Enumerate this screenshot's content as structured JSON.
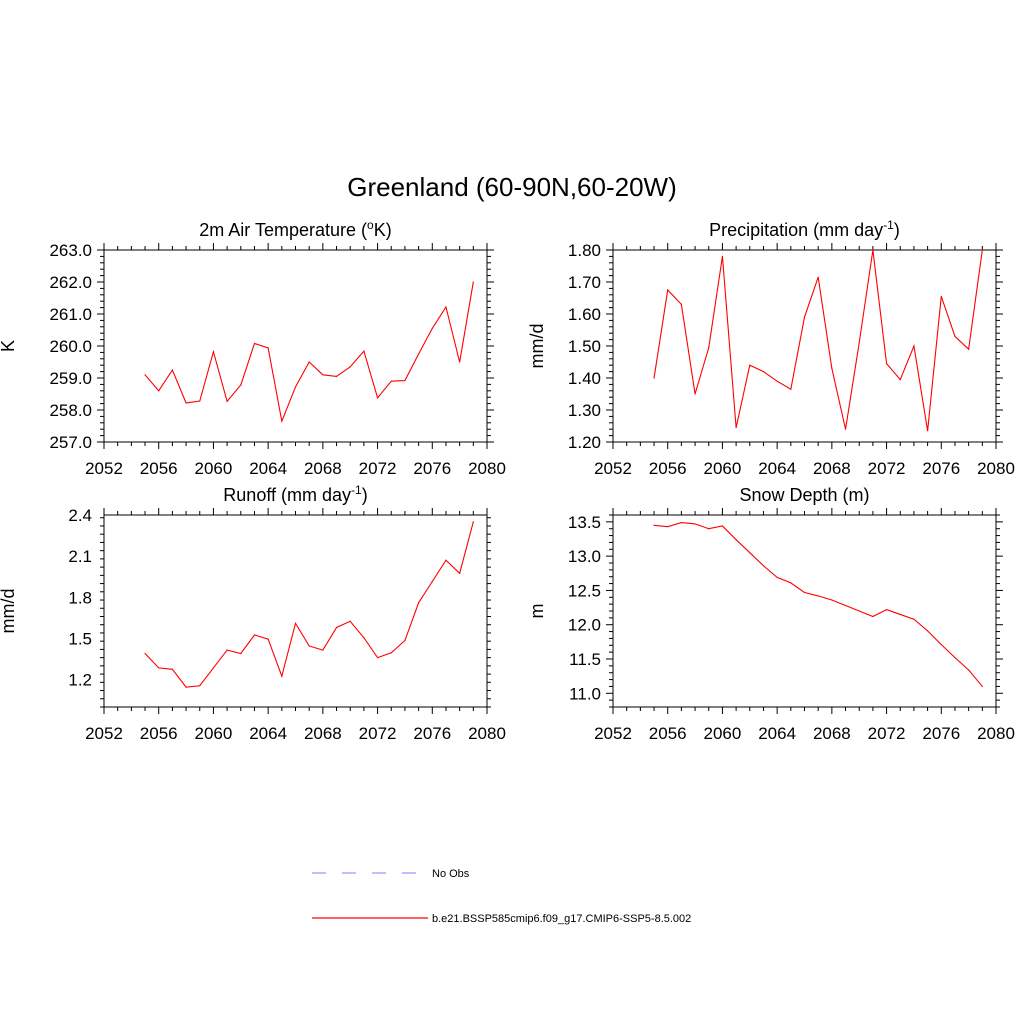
{
  "title": "Greenland (60-90N,60-20W)",
  "colors": {
    "model": "#ff0000",
    "obs": "#9999ff",
    "axis": "#000000"
  },
  "legend": {
    "obs_label": "No Obs",
    "model_label": "b.e21.BSSP585cmip6.f09_g17.CMIP6-SSP5-8.5.002"
  },
  "chart_data": [
    {
      "type": "line",
      "title": "2m Air Temperature (oK)",
      "title_main": "2m Air Temperature (",
      "title_sup": "o",
      "title_tail": "K)",
      "ylabel": "K",
      "xlim": [
        2052,
        2080
      ],
      "ylim": [
        257.0,
        263.0
      ],
      "xticks": [
        2052,
        2056,
        2060,
        2064,
        2068,
        2072,
        2076,
        2080
      ],
      "xticklabels": [
        "2052",
        "2056",
        "2060",
        "2064",
        "2068",
        "2072",
        "2076",
        "2080"
      ],
      "yticks": [
        257.0,
        258.0,
        259.0,
        260.0,
        261.0,
        262.0,
        263.0
      ],
      "yticklabels": [
        "257.0",
        "258.0",
        "259.0",
        "260.0",
        "261.0",
        "262.0",
        "263.0"
      ],
      "x": [
        2055,
        2056,
        2057,
        2058,
        2059,
        2060,
        2061,
        2062,
        2063,
        2064,
        2065,
        2066,
        2067,
        2068,
        2069,
        2070,
        2071,
        2072,
        2073,
        2074,
        2075,
        2076,
        2077,
        2078,
        2079
      ],
      "series": [
        {
          "name": "b.e21.BSSP585cmip6.f09_g17.CMIP6-SSP5-8.5.002",
          "values": [
            259.1,
            258.6,
            259.25,
            258.22,
            258.28,
            259.82,
            258.27,
            258.78,
            260.08,
            259.94,
            257.65,
            258.72,
            259.5,
            259.1,
            259.05,
            259.35,
            259.84,
            258.38,
            258.9,
            258.92,
            259.75,
            260.55,
            261.22,
            259.5,
            262.0
          ]
        }
      ]
    },
    {
      "type": "line",
      "title": "Precipitation (mm day-1)",
      "title_main": "Precipitation (mm day",
      "title_sup": "-1",
      "title_tail": ")",
      "ylabel": "mm/d",
      "xlim": [
        2052,
        2080
      ],
      "ylim": [
        1.2,
        1.8
      ],
      "xticks": [
        2052,
        2056,
        2060,
        2064,
        2068,
        2072,
        2076,
        2080
      ],
      "xticklabels": [
        "2052",
        "2056",
        "2060",
        "2064",
        "2068",
        "2072",
        "2076",
        "2080"
      ],
      "yticks": [
        1.2,
        1.3,
        1.4,
        1.5,
        1.6,
        1.7,
        1.8
      ],
      "yticklabels": [
        "1.20",
        "1.30",
        "1.40",
        "1.50",
        "1.60",
        "1.70",
        "1.80"
      ],
      "x": [
        2055,
        2056,
        2057,
        2058,
        2059,
        2060,
        2061,
        2062,
        2063,
        2064,
        2065,
        2066,
        2067,
        2068,
        2069,
        2070,
        2071,
        2072,
        2073,
        2074,
        2075,
        2076,
        2077,
        2078,
        2079
      ],
      "series": [
        {
          "name": "b.e21.BSSP585cmip6.f09_g17.CMIP6-SSP5-8.5.002",
          "values": [
            1.4,
            1.675,
            1.63,
            1.35,
            1.495,
            1.78,
            1.245,
            1.44,
            1.42,
            1.39,
            1.365,
            1.59,
            1.715,
            1.43,
            1.24,
            1.51,
            1.8,
            1.445,
            1.395,
            1.5,
            1.235,
            1.655,
            1.53,
            1.49,
            1.8
          ]
        }
      ]
    },
    {
      "type": "line",
      "title": "Runoff (mm day-1)",
      "title_main": "Runoff (mm day",
      "title_sup": "-1",
      "title_tail": ")",
      "ylabel": "mm/d",
      "xlim": [
        2052,
        2080
      ],
      "ylim": [
        1.0,
        2.4
      ],
      "xticks": [
        2052,
        2056,
        2060,
        2064,
        2068,
        2072,
        2076,
        2080
      ],
      "xticklabels": [
        "2052",
        "2056",
        "2060",
        "2064",
        "2068",
        "2072",
        "2076",
        "2080"
      ],
      "yticks": [
        1.2,
        1.5,
        1.8,
        2.1,
        2.4
      ],
      "yticklabels": [
        "1.2",
        "1.5",
        "1.8",
        "2.1",
        "2.4"
      ],
      "x": [
        2055,
        2056,
        2057,
        2058,
        2059,
        2060,
        2061,
        2062,
        2063,
        2064,
        2065,
        2066,
        2067,
        2068,
        2069,
        2070,
        2071,
        2072,
        2073,
        2074,
        2075,
        2076,
        2077,
        2078,
        2079
      ],
      "series": [
        {
          "name": "b.e21.BSSP585cmip6.f09_g17.CMIP6-SSP5-8.5.002",
          "values": [
            1.39,
            1.285,
            1.275,
            1.145,
            1.155,
            1.285,
            1.415,
            1.39,
            1.525,
            1.495,
            1.225,
            1.61,
            1.445,
            1.415,
            1.58,
            1.625,
            1.505,
            1.36,
            1.395,
            1.485,
            1.76,
            1.915,
            2.07,
            1.975,
            2.35
          ]
        }
      ]
    },
    {
      "type": "line",
      "title": "Snow Depth (m)",
      "title_main": "Snow Depth (m)",
      "title_sup": "",
      "title_tail": "",
      "ylabel": "m",
      "xlim": [
        2052,
        2080
      ],
      "ylim": [
        10.8,
        13.6
      ],
      "xticks": [
        2052,
        2056,
        2060,
        2064,
        2068,
        2072,
        2076,
        2080
      ],
      "xticklabels": [
        "2052",
        "2056",
        "2060",
        "2064",
        "2068",
        "2072",
        "2076",
        "2080"
      ],
      "yticks": [
        11.0,
        11.5,
        12.0,
        12.5,
        13.0,
        13.5
      ],
      "yticklabels": [
        "11.0",
        "11.5",
        "12.0",
        "12.5",
        "13.0",
        "13.5"
      ],
      "x": [
        2055,
        2056,
        2057,
        2058,
        2059,
        2060,
        2061,
        2062,
        2063,
        2064,
        2065,
        2066,
        2067,
        2068,
        2069,
        2070,
        2071,
        2072,
        2073,
        2074,
        2075,
        2076,
        2077,
        2078,
        2079
      ],
      "series": [
        {
          "name": "b.e21.BSSP585cmip6.f09_g17.CMIP6-SSP5-8.5.002",
          "values": [
            13.45,
            13.43,
            13.49,
            13.47,
            13.4,
            13.44,
            13.24,
            13.05,
            12.86,
            12.69,
            12.61,
            12.47,
            12.42,
            12.36,
            12.28,
            12.2,
            12.12,
            12.22,
            12.15,
            12.08,
            11.91,
            11.71,
            11.52,
            11.34,
            11.1
          ]
        }
      ]
    }
  ]
}
